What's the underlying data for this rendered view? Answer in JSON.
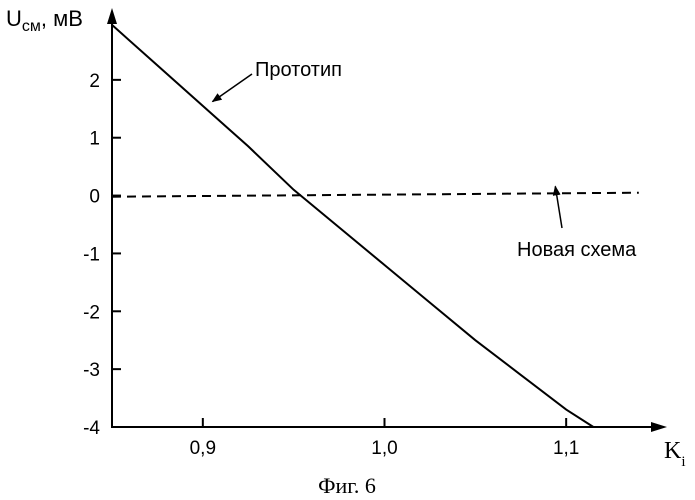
{
  "chart_data": {
    "type": "line",
    "caption": "Фиг. 6",
    "ylabel_main": "U",
    "ylabel_sub": "см",
    "ylabel_unit": ", мВ",
    "xlabel_main": "K",
    "xlabel_sub": "i",
    "xlim": [
      0.85,
      1.15
    ],
    "ylim": [
      -4,
      3
    ],
    "xticks": [
      0.9,
      1.0,
      1.1
    ],
    "xtick_labels": [
      "0,9",
      "1,0",
      "1,1"
    ],
    "yticks": [
      2,
      1,
      0,
      -1,
      -2,
      -3,
      -4
    ],
    "ytick_labels": [
      "2",
      "1",
      "0",
      "-1",
      "-2",
      "-3",
      "-4"
    ],
    "series": [
      {
        "name": "Прототип",
        "style": "solid",
        "x": [
          0.85,
          0.875,
          0.9,
          0.925,
          0.95,
          0.975,
          1.0,
          1.025,
          1.05,
          1.075,
          1.1,
          1.115
        ],
        "y": [
          2.95,
          2.25,
          1.55,
          0.85,
          0.1,
          -0.55,
          -1.2,
          -1.85,
          -2.5,
          -3.1,
          -3.7,
          -4.0
        ]
      },
      {
        "name": "Новая схема",
        "style": "dashed",
        "x": [
          0.85,
          1.14
        ],
        "y": [
          -0.02,
          0.05
        ]
      }
    ],
    "annotations": [
      {
        "text": "Прототип",
        "points_to_x": 0.902,
        "points_to_y": 1.52
      },
      {
        "text": "Новая схема",
        "points_to_x": 1.094,
        "points_to_y": 0.02
      }
    ]
  }
}
